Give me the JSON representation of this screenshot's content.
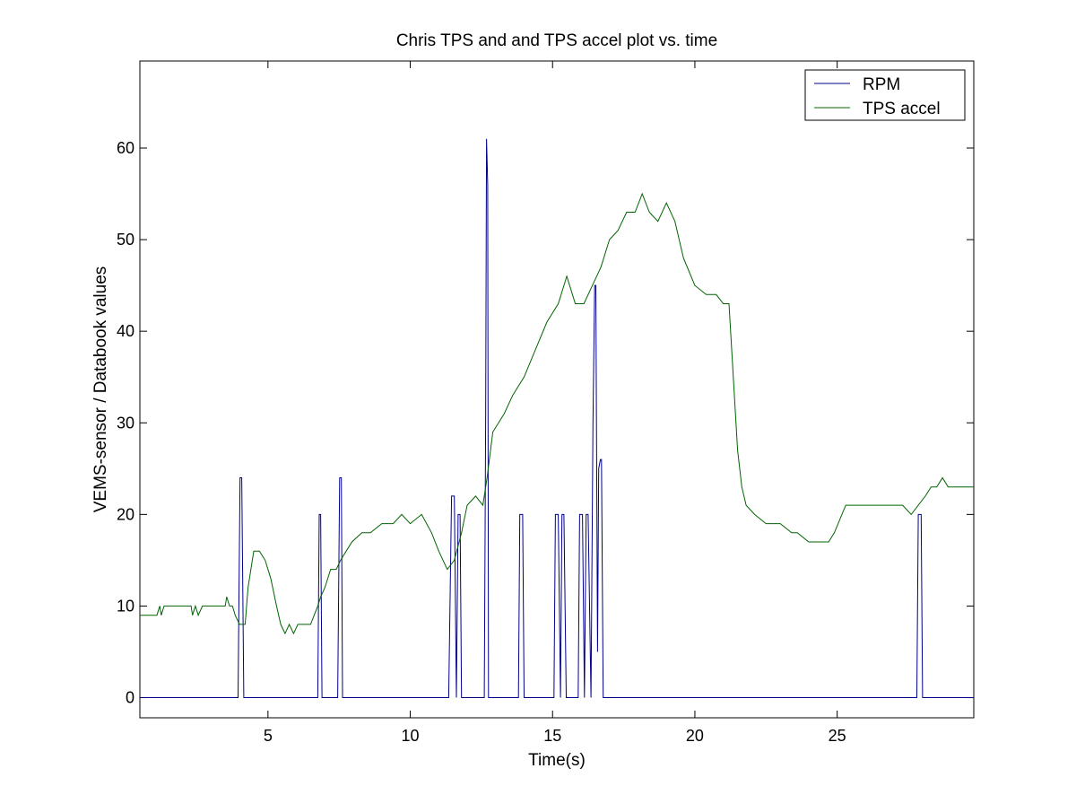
{
  "chart_data": {
    "type": "line",
    "title": "Chris TPS and and TPS accel plot vs. time",
    "xlabel": "Time(s)",
    "ylabel": "VEMS-sensor / Databook values",
    "xlim": [
      0.5,
      29.8
    ],
    "ylim": [
      -2.2,
      69.5
    ],
    "xticks": [
      5,
      10,
      15,
      20,
      25
    ],
    "yticks": [
      0,
      10,
      20,
      30,
      40,
      50,
      60
    ],
    "grid": false,
    "legend_position": "top-right",
    "colors": {
      "RPM": "#00008b",
      "TPS accel": "#006400",
      "axes": "#000000",
      "background": "#ffffff"
    },
    "series": [
      {
        "name": "RPM",
        "color": "#00008b",
        "x": [
          0.5,
          3.95,
          4.02,
          4.08,
          4.15,
          4.22,
          6.75,
          6.8,
          6.85,
          6.9,
          6.95,
          7.45,
          7.52,
          7.58,
          7.62,
          7.68,
          11.35,
          11.45,
          11.55,
          11.62,
          11.68,
          11.75,
          11.8,
          11.85,
          12.6,
          12.65,
          12.68,
          12.72,
          12.75,
          12.8,
          13.8,
          13.85,
          13.95,
          14.0,
          15.05,
          15.1,
          15.2,
          15.28,
          15.33,
          15.4,
          15.48,
          15.55,
          15.9,
          15.95,
          16.05,
          16.12,
          16.18,
          16.25,
          16.35,
          16.42,
          16.48,
          16.52,
          16.58,
          16.62,
          16.68,
          16.72,
          16.78,
          16.82,
          27.8,
          27.85,
          27.95,
          28.0,
          29.8
        ],
        "y": [
          0,
          0,
          24,
          24,
          0,
          0,
          0,
          20,
          20,
          0,
          0,
          0,
          24,
          24,
          0,
          0,
          0,
          22,
          22,
          0,
          20,
          20,
          0,
          0,
          0,
          30,
          61,
          56,
          0,
          0,
          0,
          20,
          20,
          0,
          0,
          20,
          20,
          0,
          20,
          20,
          0,
          0,
          0,
          20,
          20,
          0,
          20,
          20,
          0,
          30,
          45,
          45,
          5,
          25,
          26,
          26,
          0,
          0,
          0,
          20,
          20,
          0,
          0
        ]
      },
      {
        "name": "TPS accel",
        "color": "#006400",
        "x": [
          0.5,
          1.1,
          1.2,
          1.25,
          1.35,
          2.3,
          2.35,
          2.45,
          2.55,
          2.7,
          3.5,
          3.55,
          3.65,
          3.75,
          3.85,
          4.0,
          4.1,
          4.2,
          4.3,
          4.5,
          4.7,
          4.9,
          5.1,
          5.3,
          5.45,
          5.6,
          5.75,
          5.9,
          6.05,
          6.25,
          6.5,
          6.75,
          6.85,
          7.0,
          7.2,
          7.4,
          7.55,
          7.75,
          7.95,
          8.3,
          8.6,
          9.0,
          9.4,
          9.7,
          10.0,
          10.4,
          10.75,
          11.0,
          11.3,
          11.55,
          11.8,
          12.0,
          12.3,
          12.55,
          12.7,
          12.9,
          13.3,
          13.6,
          14.0,
          14.4,
          14.8,
          15.2,
          15.5,
          15.8,
          16.1,
          16.4,
          16.7,
          17.0,
          17.3,
          17.6,
          17.9,
          18.15,
          18.4,
          18.7,
          19.0,
          19.3,
          19.6,
          20.0,
          20.4,
          20.75,
          21.0,
          21.2,
          21.35,
          21.5,
          21.65,
          21.8,
          22.1,
          22.5,
          23.0,
          23.4,
          23.6,
          24.0,
          24.4,
          24.7,
          24.9,
          25.3,
          25.8,
          26.5,
          27.3,
          27.6,
          27.85,
          28.1,
          28.3,
          28.5,
          28.7,
          28.9,
          29.2,
          29.5,
          29.8
        ],
        "y": [
          9,
          9,
          10,
          9,
          10,
          10,
          9,
          10,
          9,
          10,
          10,
          11,
          10,
          10,
          9,
          8,
          8,
          8,
          12,
          16,
          16,
          15,
          13,
          10,
          8,
          7,
          8,
          7,
          8,
          8,
          8,
          10,
          11,
          12,
          14,
          14,
          15,
          16,
          17,
          18,
          18,
          19,
          19,
          20,
          19,
          20,
          18,
          16,
          14,
          15,
          18,
          21,
          22,
          21,
          24,
          29,
          31,
          33,
          35,
          38,
          41,
          43,
          46,
          43,
          43,
          45,
          47,
          50,
          51,
          53,
          53,
          55,
          53,
          52,
          54,
          52,
          48,
          45,
          44,
          44,
          43,
          43,
          35,
          27,
          23,
          21,
          20,
          19,
          19,
          18,
          18,
          17,
          17,
          17,
          18,
          21,
          21,
          21,
          21,
          20,
          21,
          22,
          23,
          23,
          24,
          23,
          23,
          23,
          23
        ]
      }
    ]
  }
}
